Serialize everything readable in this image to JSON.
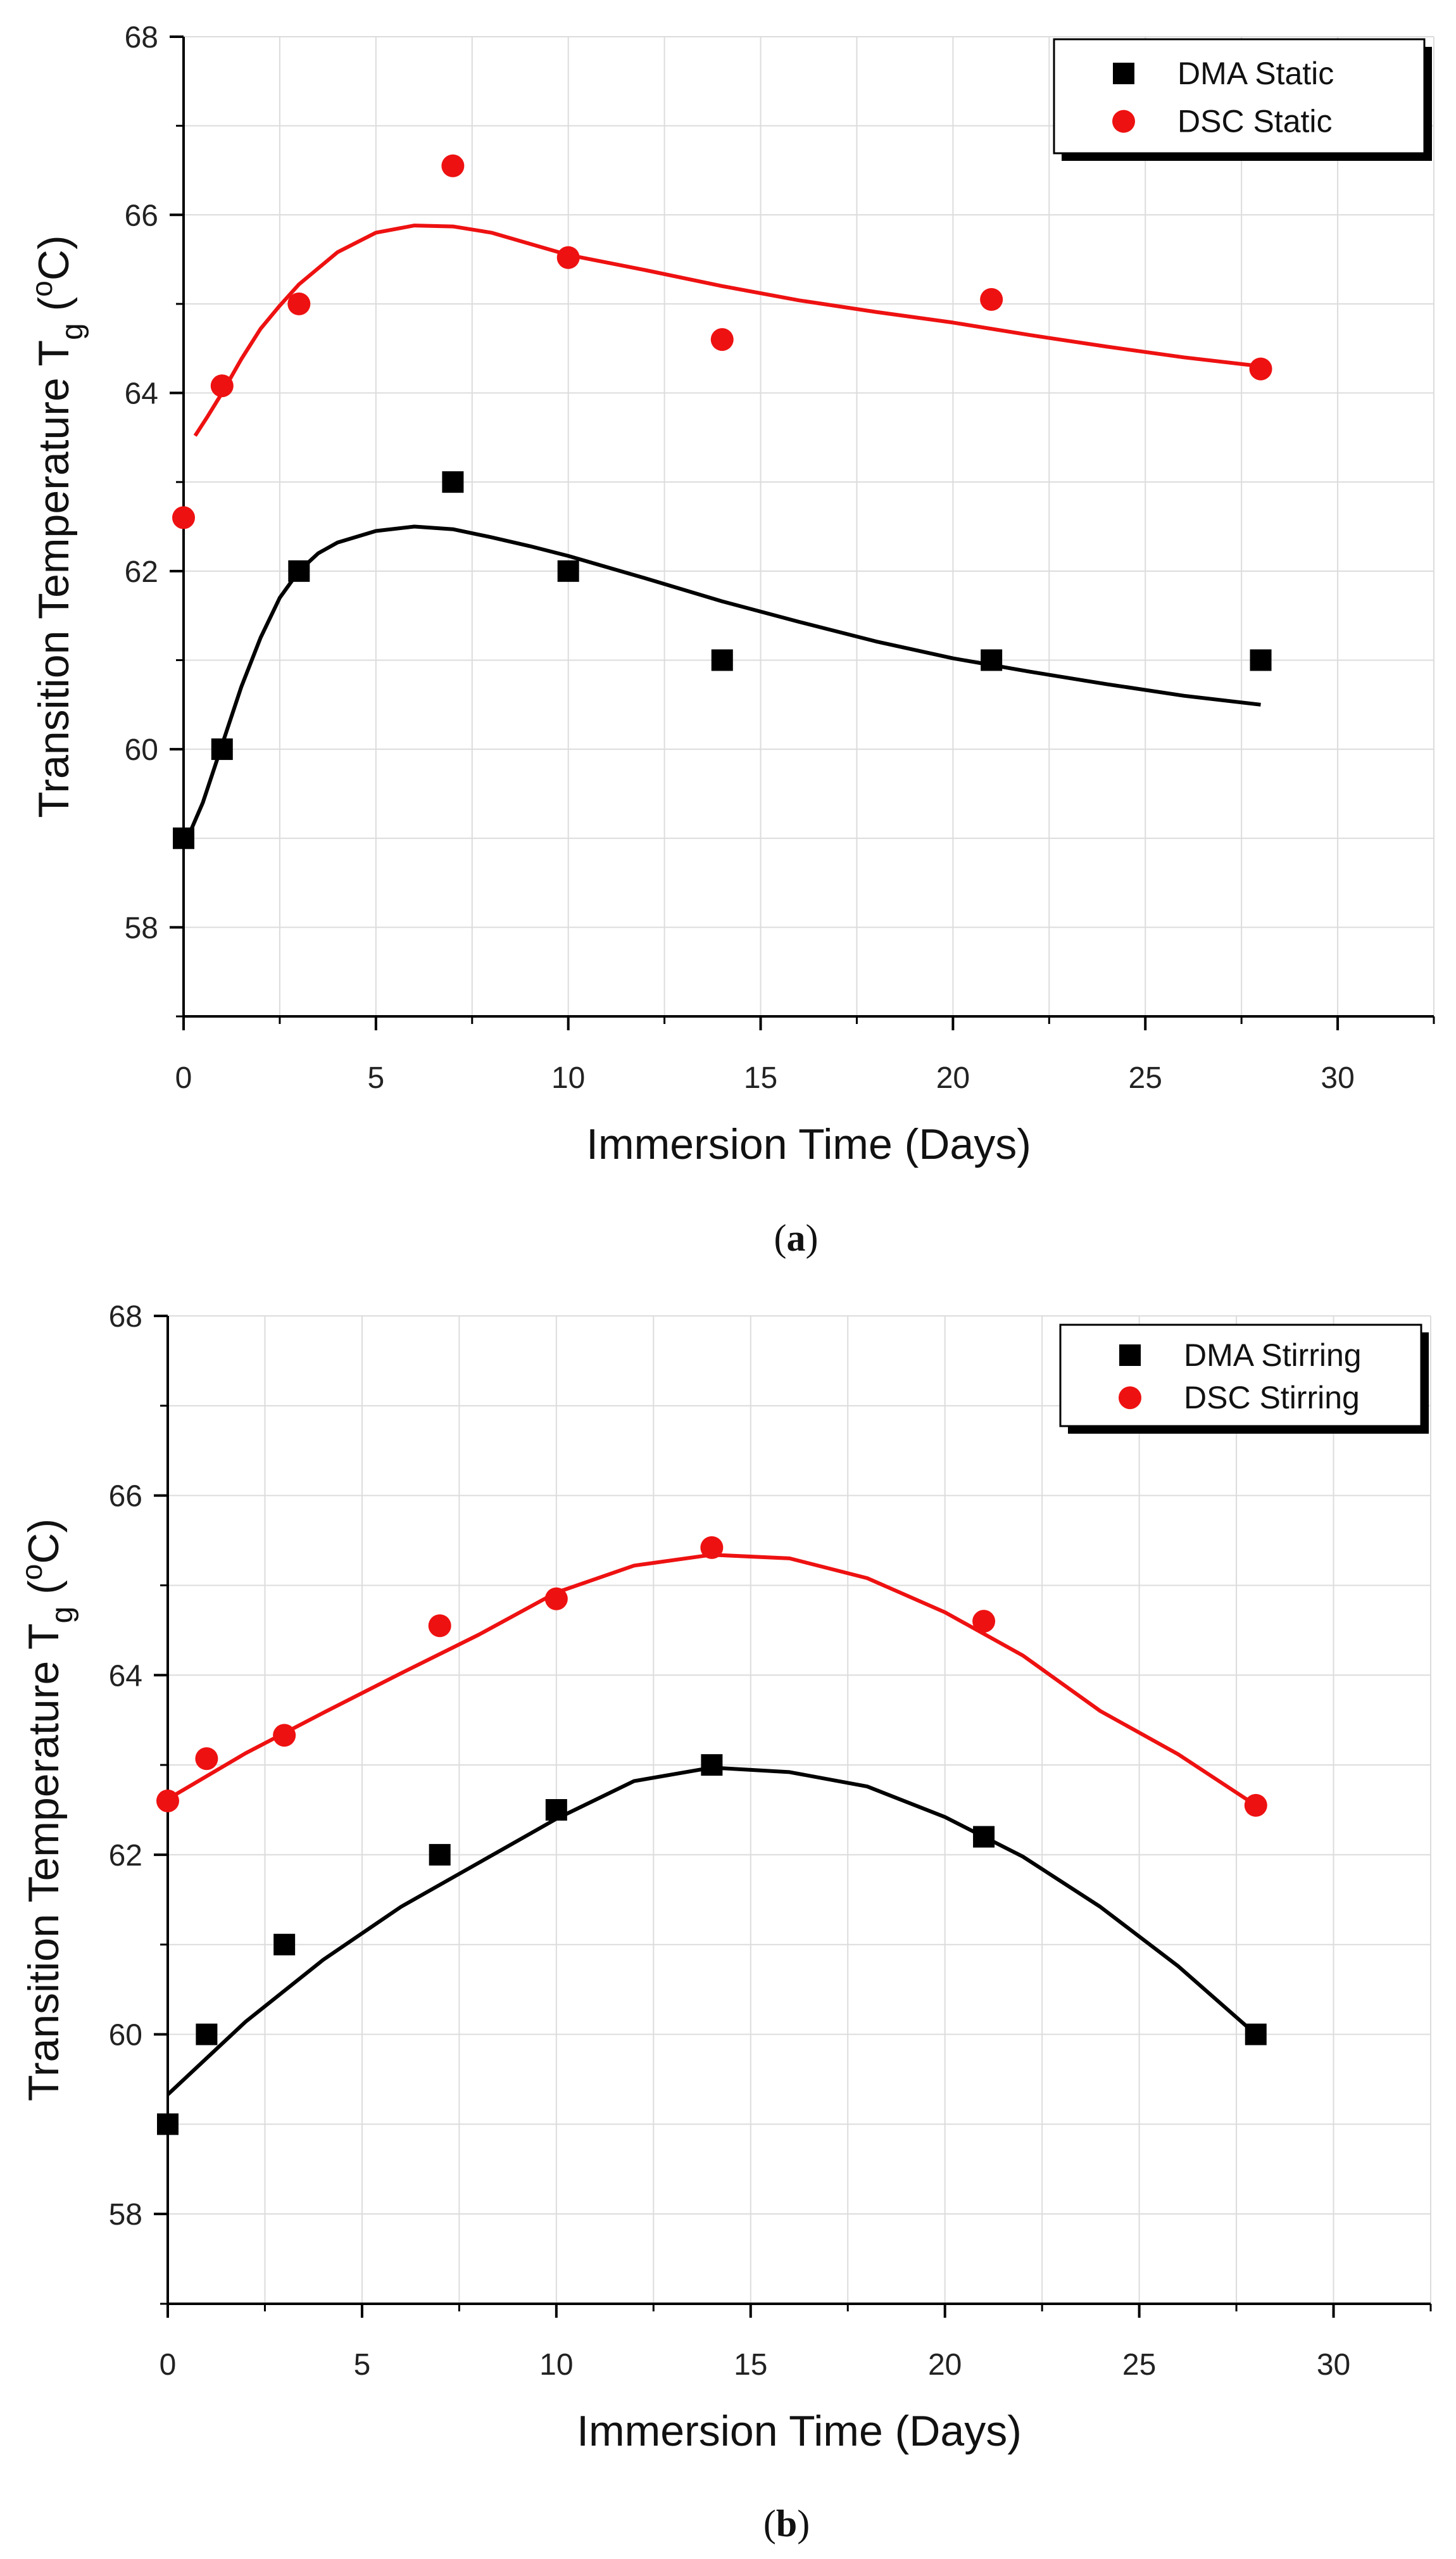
{
  "chart_data": [
    {
      "type": "scatter",
      "panel": "a",
      "caption": "(a)",
      "caption_letter": "a",
      "xlabel": "Immersion Time (Days)",
      "ylabel_main": "Transition Temperature T",
      "ylabel_sub": "g",
      "ylabel_unit": " (",
      "ylabel_deg": "o",
      "ylabel_end": "C)",
      "xlim": [
        0,
        32.5
      ],
      "ylim": [
        57,
        68
      ],
      "xticks": [
        0,
        5,
        10,
        15,
        20,
        25,
        30
      ],
      "yticks": [
        58,
        60,
        62,
        64,
        66,
        68
      ],
      "grid": true,
      "legend_position": "top-right",
      "series": [
        {
          "name": "DMA Static",
          "marker": "square",
          "color": "#000000",
          "x": [
            0,
            1,
            3,
            7,
            10,
            14,
            21,
            28
          ],
          "y": [
            59.0,
            60.0,
            62.0,
            63.0,
            62.0,
            61.0,
            61.0,
            61.0
          ],
          "fit_x": [
            0.1,
            0.5,
            1,
            1.5,
            2,
            2.5,
            3,
            3.5,
            4,
            5,
            6,
            7,
            8,
            9,
            10,
            12,
            14,
            16,
            18,
            20,
            22,
            24,
            26,
            28
          ],
          "fit_y": [
            59.0,
            59.4,
            60.05,
            60.7,
            61.25,
            61.7,
            62.0,
            62.2,
            62.32,
            62.45,
            62.5,
            62.47,
            62.38,
            62.28,
            62.17,
            61.92,
            61.66,
            61.43,
            61.21,
            61.02,
            60.87,
            60.73,
            60.6,
            60.5
          ]
        },
        {
          "name": "DSC Static",
          "marker": "circle",
          "color": "#ee1111",
          "x": [
            0,
            1,
            3,
            7,
            10,
            14,
            21,
            28
          ],
          "y": [
            62.6,
            64.08,
            65.0,
            66.55,
            65.52,
            64.6,
            65.05,
            64.27
          ],
          "fit_x": [
            0.3,
            0.6,
            1,
            1.5,
            2,
            2.5,
            3,
            4,
            5,
            6,
            7,
            8,
            10,
            12,
            14,
            16,
            18,
            20,
            22,
            24,
            26,
            28
          ],
          "fit_y": [
            63.52,
            63.72,
            64.0,
            64.38,
            64.72,
            64.98,
            65.22,
            65.58,
            65.8,
            65.88,
            65.87,
            65.8,
            65.55,
            65.38,
            65.2,
            65.04,
            64.91,
            64.79,
            64.65,
            64.52,
            64.4,
            64.3
          ]
        }
      ]
    },
    {
      "type": "scatter",
      "panel": "b",
      "caption": "(b)",
      "caption_letter": "b",
      "xlabel": "Immersion Time (Days)",
      "ylabel_main": "Transition Temperature T",
      "ylabel_sub": "g",
      "ylabel_unit": " (",
      "ylabel_deg": "o",
      "ylabel_end": "C)",
      "xlim": [
        0,
        32.5
      ],
      "ylim": [
        57,
        68
      ],
      "xticks": [
        0,
        5,
        10,
        15,
        20,
        25,
        30
      ],
      "yticks": [
        58,
        60,
        62,
        64,
        66,
        68
      ],
      "grid": true,
      "legend_position": "top-right",
      "series": [
        {
          "name": "DMA Stirring",
          "marker": "square",
          "color": "#000000",
          "x": [
            0,
            1,
            3,
            7,
            10,
            14,
            21,
            28
          ],
          "y": [
            59.0,
            60.0,
            61.0,
            62.0,
            62.5,
            63.0,
            62.2,
            60.0
          ],
          "fit_x": [
            0,
            2,
            4,
            6,
            8,
            10,
            12,
            14,
            16,
            18,
            20,
            22,
            24,
            26,
            28
          ],
          "fit_y": [
            59.33,
            60.14,
            60.83,
            61.42,
            61.91,
            62.4,
            62.82,
            62.97,
            62.92,
            62.76,
            62.42,
            61.98,
            61.42,
            60.76,
            60.0
          ]
        },
        {
          "name": "DSC Stirring",
          "marker": "circle",
          "color": "#ee1111",
          "x": [
            0,
            1,
            3,
            7,
            10,
            14,
            21,
            28
          ],
          "y": [
            62.6,
            63.07,
            63.33,
            64.55,
            64.85,
            65.42,
            64.6,
            62.55
          ],
          "fit_x": [
            0,
            2,
            4,
            6,
            8,
            10,
            12,
            14,
            16,
            18,
            20,
            22,
            24,
            26,
            28
          ],
          "fit_y": [
            62.62,
            63.13,
            63.58,
            64.02,
            64.45,
            64.92,
            65.22,
            65.34,
            65.3,
            65.08,
            64.7,
            64.22,
            63.6,
            63.12,
            62.55
          ]
        }
      ]
    }
  ]
}
